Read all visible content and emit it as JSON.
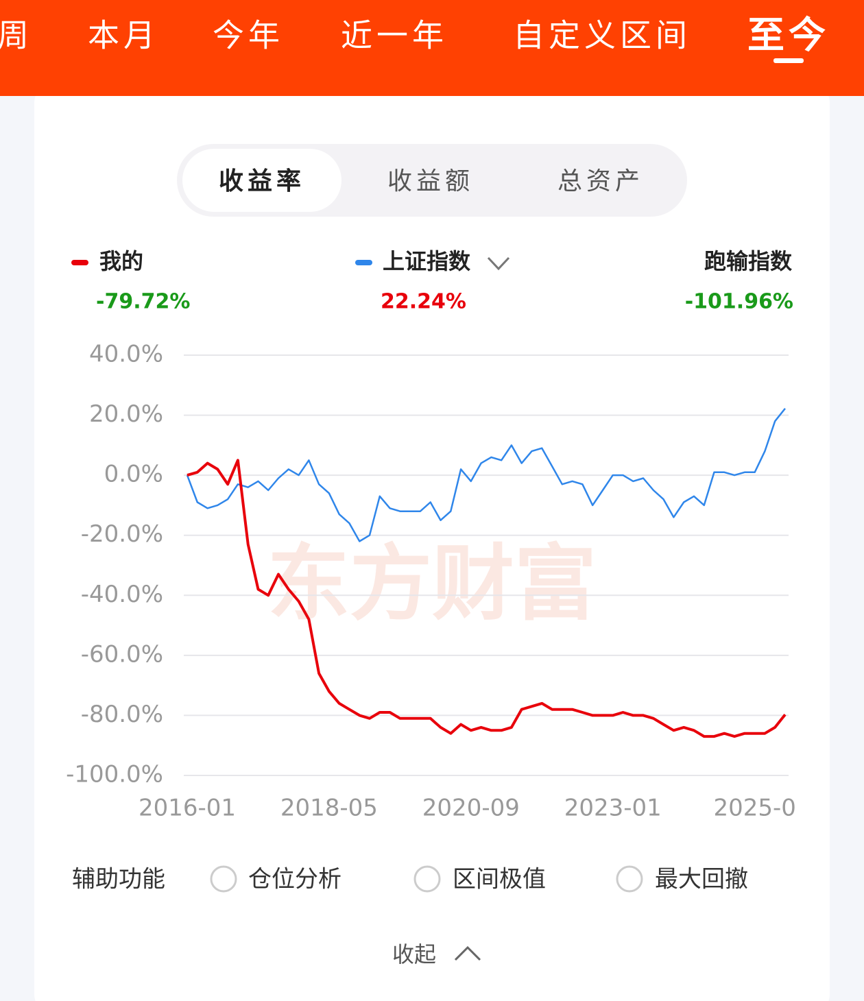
{
  "tabs": [
    "周",
    "本月",
    "今年",
    "近一年",
    "自定义区间",
    "至今"
  ],
  "active_tab": 5,
  "segments": [
    "收益率",
    "收益额",
    "总资产"
  ],
  "active_segment": 0,
  "watermark": "东方财富",
  "chart_data": {
    "type": "line",
    "categories": [
      "2016-01",
      null,
      null,
      null,
      null,
      null,
      null,
      null,
      null,
      null,
      null,
      null,
      null,
      null,
      "2018-05",
      null,
      null,
      null,
      null,
      null,
      null,
      null,
      null,
      null,
      null,
      null,
      null,
      null,
      "2020-09",
      null,
      null,
      null,
      null,
      null,
      null,
      null,
      null,
      null,
      null,
      null,
      null,
      null,
      "2023-01",
      null,
      null,
      null,
      null,
      null,
      null,
      null,
      null,
      null,
      null,
      null,
      null,
      null,
      "2025-0",
      null,
      null,
      null
    ],
    "series": [
      {
        "name": "我的",
        "color": "#e8000b",
        "total_label": "-79.72%",
        "values": [
          0,
          1,
          4,
          2,
          -3,
          5,
          -23,
          -38,
          -40,
          -33,
          -38,
          -42,
          -48,
          -66,
          -72,
          -76,
          -78,
          -80,
          -81,
          -79,
          -79,
          -81,
          -81,
          -81,
          -81,
          -84,
          -86,
          -83,
          -85,
          -84,
          -85,
          -85,
          -84,
          -78,
          -77,
          -76,
          -78,
          -78,
          -78,
          -79,
          -80,
          -80,
          -80,
          -79,
          -80,
          -80,
          -81,
          -83,
          -85,
          -84,
          -85,
          -87,
          -87,
          -86,
          -87,
          -86,
          -86,
          -86,
          -84,
          -79.72
        ]
      },
      {
        "name": "上证指数",
        "color": "#2f86ea",
        "total_label": "22.24%",
        "values": [
          0,
          -9,
          -11,
          -10,
          -8,
          -3,
          -4,
          -2,
          -5,
          -1,
          2,
          0,
          5,
          -3,
          -6,
          -13,
          -16,
          -22,
          -20,
          -7,
          -11,
          -12,
          -12,
          -12,
          -9,
          -15,
          -12,
          2,
          -2,
          4,
          6,
          5,
          10,
          4,
          8,
          9,
          3,
          -3,
          -2,
          -3,
          -10,
          -5,
          0,
          0,
          -2,
          -1,
          -5,
          -8,
          -14,
          -9,
          -7,
          -10,
          1,
          1,
          0,
          1,
          1,
          8,
          18,
          22.24
        ]
      }
    ],
    "excess": {
      "name": "跑输指数",
      "label": "-101.96%"
    },
    "ylim": [
      -100,
      40
    ],
    "yticks": [
      {
        "value": 40,
        "label": "40.0%"
      },
      {
        "value": 20,
        "label": "20.0%"
      },
      {
        "value": 0,
        "label": "0.0%"
      },
      {
        "value": -20,
        "label": "-20.0%"
      },
      {
        "value": -40,
        "label": "-40.0%"
      },
      {
        "value": -60,
        "label": "-60.0%"
      },
      {
        "value": -80,
        "label": "-80.0%"
      },
      {
        "value": -100,
        "label": "-100.0%"
      }
    ],
    "grid": true
  },
  "aux": {
    "title": "辅助功能",
    "options": [
      "仓位分析",
      "区间极值",
      "最大回撤"
    ]
  },
  "collapse": "收起"
}
